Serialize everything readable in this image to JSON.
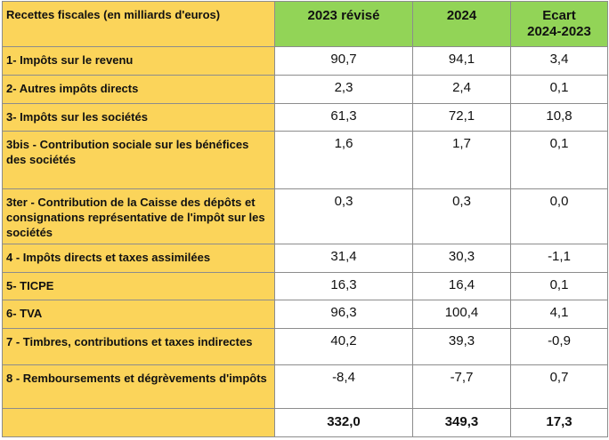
{
  "table": {
    "header": {
      "label": "Recettes fiscales (en milliards d'euros)",
      "col_2023": "2023 révisé",
      "col_2024": "2024",
      "col_ecart_line1": "Ecart",
      "col_ecart_line2": "2024-2023"
    },
    "rows": [
      {
        "label": "1- Impôts sur le revenu",
        "v2023": "90,7",
        "v2024": "94,1",
        "ecart": "3,4"
      },
      {
        "label": "2- Autres impôts directs",
        "v2023": "2,3",
        "v2024": "2,4",
        "ecart": "0,1"
      },
      {
        "label": "3- Impôts sur les sociétés",
        "v2023": "61,3",
        "v2024": "72,1",
        "ecart": "10,8"
      },
      {
        "label": "3bis - Contribution sociale sur les bénéfices des sociétés",
        "v2023": "1,6",
        "v2024": "1,7",
        "ecart": "0,1"
      },
      {
        "label": "3ter - Contribution de la Caisse des dépôts et consignations représentative de l'impôt sur les sociétés",
        "v2023": "0,3",
        "v2024": "0,3",
        "ecart": "0,0"
      },
      {
        "label": "4 - Impôts directs et taxes assimilées",
        "v2023": "31,4",
        "v2024": "30,3",
        "ecart": "-1,1"
      },
      {
        "label": "5- TICPE",
        "v2023": "16,3",
        "v2024": "16,4",
        "ecart": "0,1"
      },
      {
        "label": "6- TVA",
        "v2023": "96,3",
        "v2024": "100,4",
        "ecart": "4,1"
      },
      {
        "label": "7 - Timbres, contributions et taxes indirectes",
        "v2023": "40,2",
        "v2024": "39,3",
        "ecart": "-0,9"
      },
      {
        "label": "8 - Remboursements et dégrèvements d'impôts",
        "v2023": "-8,4",
        "v2024": "-7,7",
        "ecart": "0,7"
      }
    ],
    "total": {
      "label": "",
      "v2023": "332,0",
      "v2024": "349,3",
      "ecart": "17,3"
    },
    "colors": {
      "label_bg": "#fbd45a",
      "header_year_bg": "#92d457",
      "total_text": "#e8342d",
      "border": "#8c8c8c"
    }
  }
}
